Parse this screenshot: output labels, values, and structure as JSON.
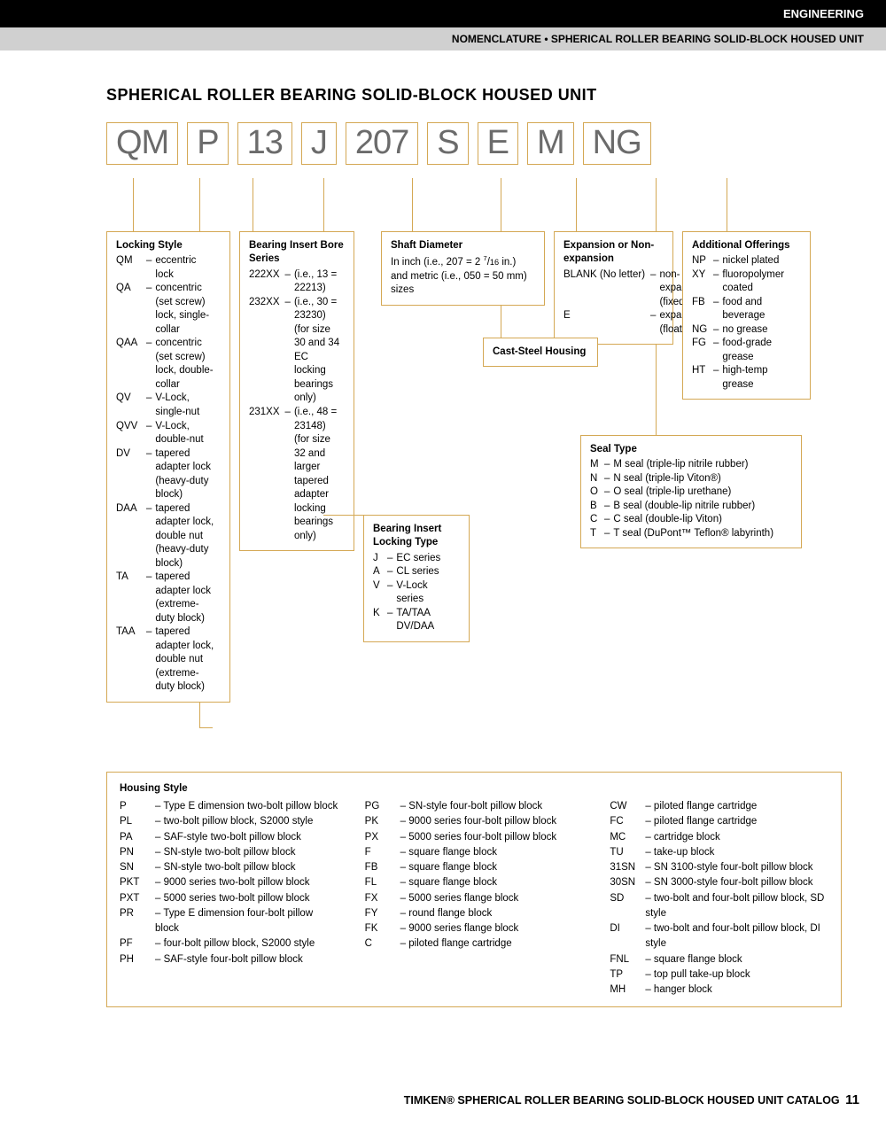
{
  "header": {
    "category": "ENGINEERING",
    "sub": "NOMENCLATURE • SPHERICAL ROLLER BEARING SOLID-BLOCK HOUSED UNIT"
  },
  "title": "SPHERICAL ROLLER BEARING SOLID-BLOCK HOUSED UNIT",
  "code": [
    "QM",
    "P",
    "13",
    "J",
    "207",
    "S",
    "E",
    "M",
    "NG"
  ],
  "locking": {
    "title": "Locking Style",
    "items": [
      [
        "QM",
        "eccentric lock"
      ],
      [
        "QA",
        "concentric (set screw) lock, single-collar"
      ],
      [
        "QAA",
        "concentric (set screw) lock, double-collar"
      ],
      [
        "QV",
        "V-Lock, single-nut"
      ],
      [
        "QVV",
        "V-Lock, double-nut"
      ],
      [
        "DV",
        "tapered adapter lock (heavy-duty block)"
      ],
      [
        "DAA",
        "tapered adapter lock, double nut (heavy-duty block)"
      ],
      [
        "TA",
        "tapered adapter lock (extreme-duty block)"
      ],
      [
        "TAA",
        "tapered adapter lock, double nut (extreme-duty block)"
      ]
    ]
  },
  "bore": {
    "title": "Bearing Insert Bore Series",
    "items": [
      [
        "222XX",
        "(i.e., 13 = 22213)"
      ],
      [
        "232XX",
        "(i.e., 30 = 23230) (for size 30 and 34 EC locking bearings only)"
      ],
      [
        "231XX",
        "(i.e., 48 = 23148) (for size 32 and larger tapered adapter locking bearings only)"
      ]
    ]
  },
  "locktype": {
    "title": "Bearing Insert Locking Type",
    "items": [
      [
        "J",
        "EC series"
      ],
      [
        "A",
        "CL series"
      ],
      [
        "V",
        "V-Lock series"
      ],
      [
        "K",
        "TA/TAA DV/DAA"
      ]
    ]
  },
  "shaft": {
    "title": "Shaft Diameter",
    "text": "In inch (i.e., 207 = 2 7/16 in.) and metric (i.e., 050 = 50 mm) sizes"
  },
  "cast": "Cast-Steel Housing",
  "expansion": {
    "title": "Expansion or Non-expansion",
    "items": [
      [
        "BLANK (No letter)",
        "non-expansion (fixed)"
      ],
      [
        "E",
        "expansion (floating)"
      ]
    ]
  },
  "seal": {
    "title": "Seal Type",
    "items": [
      [
        "M",
        "M seal (triple-lip nitrile rubber)"
      ],
      [
        "N",
        "N seal (triple-lip Viton®)"
      ],
      [
        "O",
        "O seal (triple-lip urethane)"
      ],
      [
        "B",
        "B seal (double-lip nitrile rubber)"
      ],
      [
        "C",
        "C seal (double-lip Viton)"
      ],
      [
        "T",
        "T seal (DuPont™ Teflon® labyrinth)"
      ]
    ]
  },
  "additional": {
    "title": "Additional Offerings",
    "items": [
      [
        "NP",
        "nickel plated"
      ],
      [
        "XY",
        "fluoropolymer coated"
      ],
      [
        "FB",
        "food and beverage"
      ],
      [
        "NG",
        "no grease"
      ],
      [
        "FG",
        "food-grade grease"
      ],
      [
        "HT",
        "high-temp grease"
      ]
    ]
  },
  "housing": {
    "title": "Housing Style",
    "col1": [
      [
        "P",
        "Type E dimension two-bolt pillow block"
      ],
      [
        "PL",
        "two-bolt pillow block, S2000 style"
      ],
      [
        "PA",
        "SAF-style two-bolt pillow block"
      ],
      [
        "PN",
        "SN-style two-bolt pillow block"
      ],
      [
        "SN",
        "SN-style two-bolt pillow block"
      ],
      [
        "PKT",
        "9000 series two-bolt pillow block"
      ],
      [
        "PXT",
        "5000 series two-bolt pillow block"
      ],
      [
        "PR",
        "Type E dimension four-bolt pillow block"
      ],
      [
        "PF",
        "four-bolt pillow block, S2000 style"
      ],
      [
        "PH",
        "SAF-style four-bolt pillow block"
      ]
    ],
    "col2": [
      [
        "PG",
        "SN-style four-bolt pillow block"
      ],
      [
        "PK",
        "9000 series four-bolt pillow block"
      ],
      [
        "PX",
        "5000 series four-bolt pillow block"
      ],
      [
        "F",
        "square flange block"
      ],
      [
        "FB",
        "square flange block"
      ],
      [
        "FL",
        "square flange block"
      ],
      [
        "FX",
        "5000 series flange block"
      ],
      [
        "FY",
        "round flange block"
      ],
      [
        "FK",
        "9000 series flange block"
      ],
      [
        "C",
        "piloted flange cartridge"
      ]
    ],
    "col3": [
      [
        "CW",
        "piloted flange cartridge"
      ],
      [
        "FC",
        "piloted flange cartridge"
      ],
      [
        "MC",
        "cartridge block"
      ],
      [
        "TU",
        "take-up block"
      ],
      [
        "31SN",
        "SN 3100-style four-bolt pillow block"
      ],
      [
        "30SN",
        "SN 3000-style four-bolt pillow block"
      ],
      [
        "SD",
        "two-bolt and four-bolt pillow block, SD style"
      ],
      [
        "DI",
        "two-bolt and four-bolt pillow block, DI style"
      ],
      [
        "FNL",
        "square flange block"
      ],
      [
        "TP",
        "top pull take-up block"
      ],
      [
        "MH",
        "hanger block"
      ]
    ]
  },
  "footer": {
    "text": "TIMKEN® SPHERICAL ROLLER BEARING SOLID-BLOCK HOUSED UNIT CATALOG",
    "page": "11"
  },
  "colors": {
    "accent": "#d4a854",
    "text_gray": "#6b6b6b"
  }
}
